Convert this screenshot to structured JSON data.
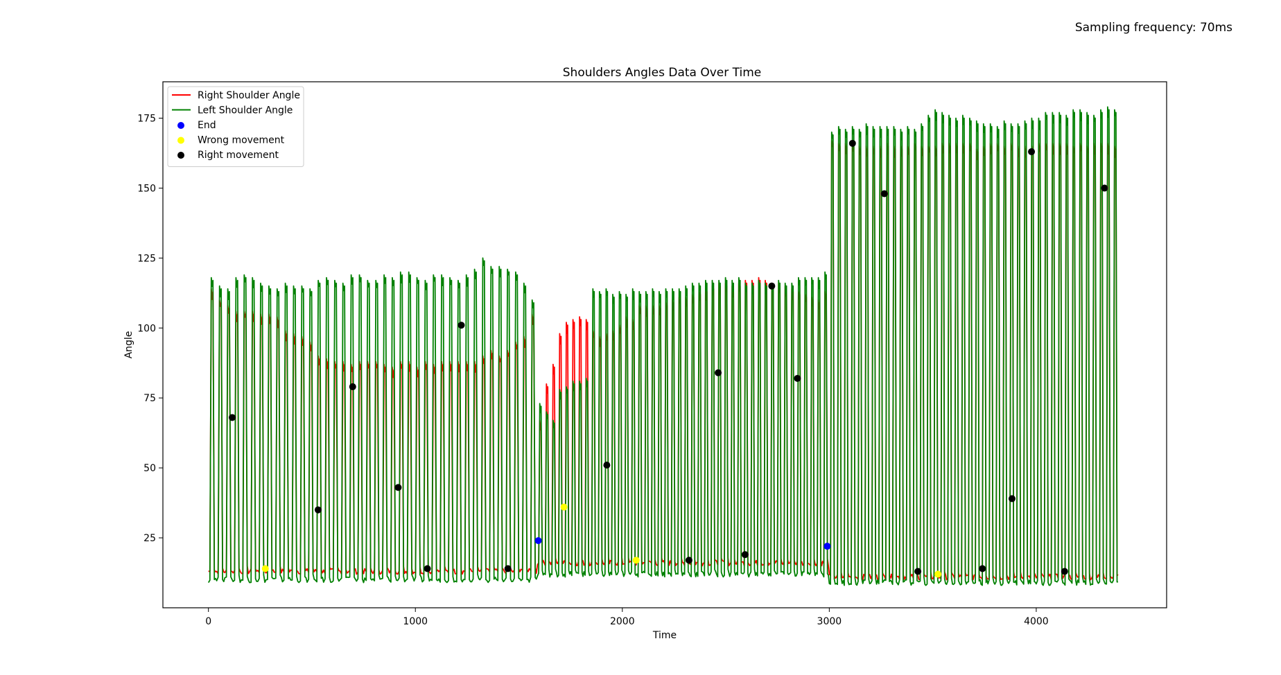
{
  "annotation": "Sampling frequency: 70ms",
  "chart_data": {
    "type": "line",
    "title": "Shoulders Angles Data Over Time",
    "xlabel": "Time",
    "ylabel": "Angle",
    "xlim": [
      -220,
      4630
    ],
    "ylim": [
      0,
      188
    ],
    "xticks": [
      0,
      1000,
      2000,
      3000,
      4000
    ],
    "yticks": [
      25,
      50,
      75,
      100,
      125,
      150,
      175
    ],
    "grid": false,
    "legend_position": "upper left",
    "series": [
      {
        "name": "Right Shoulder Angle",
        "color": "#ff0000",
        "segments": [
          {
            "start": 0,
            "end": 1590,
            "cycles": 40,
            "low": 13,
            "peaks": [
              114,
              110,
              108,
              106,
              106,
              106,
              105,
              105,
              104,
              99,
              98,
              97,
              95,
              90,
              89,
              88,
              88,
              87,
              88,
              88,
              88,
              87,
              86,
              88,
              88,
              86,
              88,
              87,
              88,
              88,
              88,
              88,
              88,
              90,
              92,
              90,
              92,
              95,
              97,
              105
            ]
          },
          {
            "start": 1590,
            "end": 3000,
            "cycles": 44,
            "low": 16,
            "peaks": [
              67,
              80,
              87,
              98,
              102,
              103,
              104,
              103,
              99,
              97,
              98,
              99,
              101,
              104,
              103,
              108,
              108,
              108,
              108,
              109,
              110,
              111,
              111,
              112,
              113,
              114,
              115,
              116,
              116,
              115,
              116,
              117,
              117,
              118,
              117,
              116,
              116,
              115,
              114,
              113,
              112,
              111,
              110,
              113
            ]
          },
          {
            "start": 3000,
            "end": 4400,
            "cycles": 42,
            "low": 11,
            "peaks": [
              167,
              166,
              166,
              166,
              165,
              165,
              165,
              165,
              166,
              165,
              165,
              165,
              166,
              165,
              165,
              165,
              166,
              166,
              166,
              166,
              166,
              164,
              165,
              166,
              166,
              165,
              166,
              165,
              165,
              165,
              166,
              166,
              166,
              166,
              166,
              165,
              166,
              165,
              166,
              166,
              166,
              165
            ]
          }
        ]
      },
      {
        "name": "Left Shoulder Angle",
        "color": "#008000",
        "segments": [
          {
            "start": 0,
            "end": 1590,
            "cycles": 40,
            "low": 10,
            "peaks": [
              118,
              115,
              114,
              118,
              119,
              118,
              116,
              115,
              114,
              116,
              115,
              115,
              114,
              117,
              118,
              117,
              116,
              119,
              119,
              117,
              117,
              119,
              118,
              120,
              120,
              118,
              117,
              119,
              119,
              118,
              117,
              119,
              121,
              125,
              122,
              122,
              121,
              120,
              116,
              110
            ]
          },
          {
            "start": 1590,
            "end": 3000,
            "cycles": 44,
            "low": 12,
            "peaks": [
              73,
              70,
              67,
              78,
              79,
              81,
              81,
              82,
              114,
              113,
              114,
              112,
              113,
              112,
              114,
              113,
              113,
              114,
              113,
              114,
              114,
              114,
              115,
              116,
              116,
              117,
              117,
              117,
              118,
              117,
              118,
              116,
              116,
              117,
              116,
              116,
              117,
              116,
              116,
              118,
              118,
              118,
              118,
              120
            ]
          },
          {
            "start": 3000,
            "end": 4400,
            "cycles": 42,
            "low": 9,
            "peaks": [
              170,
              172,
              171,
              172,
              171,
              173,
              172,
              172,
              172,
              172,
              171,
              172,
              171,
              173,
              176,
              178,
              177,
              176,
              175,
              176,
              175,
              174,
              173,
              173,
              172,
              174,
              173,
              173,
              174,
              175,
              175,
              177,
              177,
              177,
              176,
              178,
              178,
              177,
              176,
              178,
              179,
              178
            ]
          }
        ]
      }
    ],
    "markers": [
      {
        "name": "End",
        "color": "#0000ff",
        "points": [
          [
            1594,
            24
          ],
          [
            2990,
            22
          ]
        ]
      },
      {
        "name": "Wrong movement",
        "color": "#ffff00",
        "points": [
          [
            275,
            14
          ],
          [
            1718,
            36
          ],
          [
            2067,
            17
          ],
          [
            3525,
            12
          ]
        ]
      },
      {
        "name": "Right movement",
        "color": "#000000",
        "points": [
          [
            115,
            68
          ],
          [
            530,
            35
          ],
          [
            697,
            79
          ],
          [
            917,
            43
          ],
          [
            1058,
            14
          ],
          [
            1222,
            101
          ],
          [
            1447,
            14
          ],
          [
            1925,
            51
          ],
          [
            2322,
            17
          ],
          [
            2463,
            84
          ],
          [
            2593,
            19
          ],
          [
            2722,
            115
          ],
          [
            2846,
            82
          ],
          [
            3112,
            166
          ],
          [
            3266,
            148
          ],
          [
            3428,
            13
          ],
          [
            3740,
            14
          ],
          [
            3883,
            39
          ],
          [
            3977,
            163
          ],
          [
            4137,
            13
          ],
          [
            4330,
            150
          ]
        ]
      }
    ]
  }
}
